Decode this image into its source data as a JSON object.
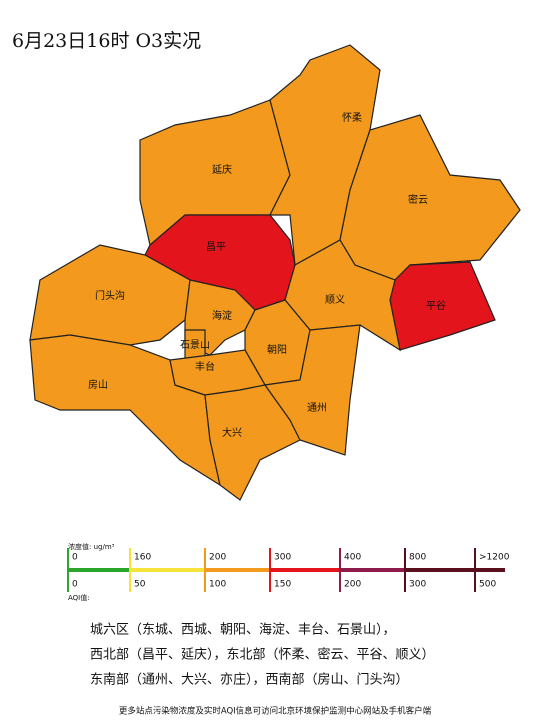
{
  "title": "6月23日16时 O3实况",
  "districts": [
    "怀柔",
    "延庆",
    "密云",
    "昌平",
    "门头沟",
    "海淀",
    "石景山",
    "朝阳",
    "丰台",
    "顺义",
    "平谷",
    "房山",
    "大兴",
    "通州"
  ],
  "legend": {
    "concentration_label": "浓度值: ug/m³",
    "concentration_ticks": [
      "0",
      "160",
      "200",
      "300",
      "400",
      "800",
      ">1200"
    ],
    "aqi_label": "AQI值:",
    "aqi_ticks": [
      "0",
      "50",
      "100",
      "150",
      "200",
      "300",
      "500"
    ]
  },
  "regions": [
    "城六区（东城、西城、朝阳、海淀、丰台、石景山），",
    "西北部（昌平、延庆），东北部（怀柔、密云、平谷、顺义）",
    "东南部（通州、大兴、亦庄），西南部（房山、门头沟）"
  ],
  "footer": "更多站点污染物浓度及实时AQI信息可访问北京环境保护监测中心网站及手机客户端"
}
